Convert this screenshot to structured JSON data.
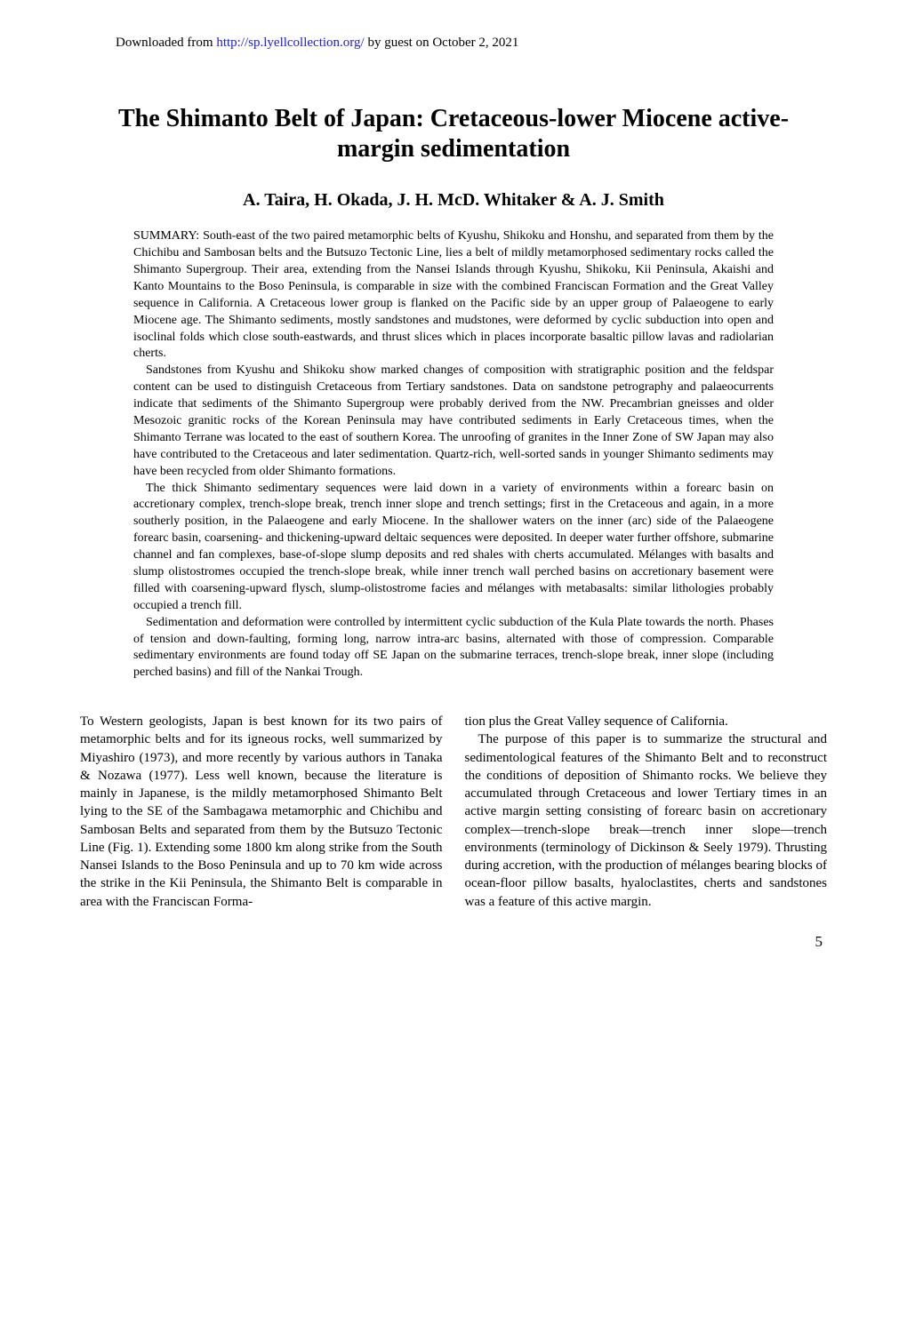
{
  "header": {
    "download_prefix": "Downloaded from ",
    "download_url": "http://sp.lyellcollection.org/",
    "download_suffix": " by guest on October 2, 2021"
  },
  "title": "The Shimanto Belt of Japan: Cretaceous-lower Miocene active-margin sedimentation",
  "authors": "A. Taira, H. Okada, J. H. McD. Whitaker & A. J. Smith",
  "summary": {
    "label": "SUMMARY: ",
    "para1": "South-east of the two paired metamorphic belts of Kyushu, Shikoku and Honshu, and separated from them by the Chichibu and Sambosan belts and the Butsuzo Tectonic Line, lies a belt of mildly metamorphosed sedimentary rocks called the Shimanto Supergroup. Their area, extending from the Nansei Islands through Kyushu, Shikoku, Kii Peninsula, Akaishi and Kanto Mountains to the Boso Peninsula, is comparable in size with the combined Franciscan Formation and the Great Valley sequence in California. A Cretaceous lower group is flanked on the Pacific side by an upper group of Palaeogene to early Miocene age. The Shimanto sediments, mostly sandstones and mudstones, were deformed by cyclic subduction into open and isoclinal folds which close south-eastwards, and thrust slices which in places incorporate basaltic pillow lavas and radiolarian cherts.",
    "para2": "Sandstones from Kyushu and Shikoku show marked changes of composition with stratigraphic position and the feldspar content can be used to distinguish Cretaceous from Tertiary sandstones. Data on sandstone petrography and palaeocurrents indicate that sediments of the Shimanto Supergroup were probably derived from the NW. Precambrian gneisses and older Mesozoic granitic rocks of the Korean Peninsula may have contributed sediments in Early Cretaceous times, when the Shimanto Terrane was located to the east of southern Korea. The unroofing of granites in the Inner Zone of SW Japan may also have contributed to the Cretaceous and later sedimentation. Quartz-rich, well-sorted sands in younger Shimanto sediments may have been recycled from older Shimanto formations.",
    "para3": "The thick Shimanto sedimentary sequences were laid down in a variety of environments within a forearc basin on accretionary complex, trench-slope break, trench inner slope and trench settings; first in the Cretaceous and again, in a more southerly position, in the Palaeogene and early Miocene. In the shallower waters on the inner (arc) side of the Palaeogene forearc basin, coarsening- and thickening-upward deltaic sequences were deposited. In deeper water further offshore, submarine channel and fan complexes, base-of-slope slump deposits and red shales with cherts accumulated. Mélanges with basalts and slump olistostromes occupied the trench-slope break, while inner trench wall perched basins on accretionary basement were filled with coarsening-upward flysch, slump-olistostrome facies and mélanges with metabasalts: similar lithologies probably occupied a trench fill.",
    "para4": "Sedimentation and deformation were controlled by intermittent cyclic subduction of the Kula Plate towards the north. Phases of tension and down-faulting, forming long, narrow intra-arc basins, alternated with those of compression. Comparable sedimentary environments are found today off SE Japan on the submarine terraces, trench-slope break, inner slope (including perched basins) and fill of the Nankai Trough."
  },
  "body": {
    "col1": "To Western geologists, Japan is best known for its two pairs of metamorphic belts and for its igneous rocks, well summarized by Miyashiro (1973), and more recently by various authors in Tanaka & Nozawa (1977). Less well known, because the literature is mainly in Japanese, is the mildly metamorphosed Shimanto Belt lying to the SE of the Sambagawa metamorphic and Chichibu and Sambosan Belts and separated from them by the Butsuzo Tectonic Line (Fig. 1). Extending some 1800 km along strike from the South Nansei Islands to the Boso Peninsula and up to 70 km wide across the strike in the Kii Peninsula, the Shimanto Belt is comparable in area with the Franciscan Forma-",
    "col2_p1": "tion plus the Great Valley sequence of California.",
    "col2_p2": "The purpose of this paper is to summarize the structural and sedimentological features of the Shimanto Belt and to reconstruct the conditions of deposition of Shimanto rocks. We believe they accumulated through Cretaceous and lower Tertiary times in an active margin setting consisting of forearc basin on accretionary complex—trench-slope break—trench inner slope—trench environments (terminology of Dickinson & Seely 1979). Thrusting during accretion, with the production of mélanges bearing blocks of ocean-floor pillow basalts, hyaloclastites, cherts and sandstones was a feature of this active margin."
  },
  "page_number": "5"
}
